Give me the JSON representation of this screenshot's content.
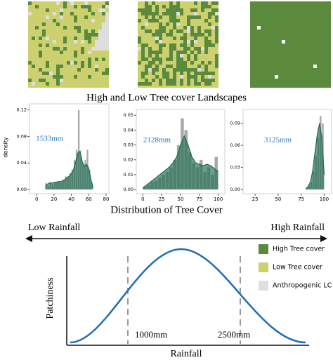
{
  "maps_title": "High and Low Tree cover Landscapes",
  "hist_title": "Distribution of Tree Cover",
  "arrow": {
    "left": "Low Rainfall",
    "right": "High Rainfall"
  },
  "chart_data": [
    {
      "type": "histogram",
      "annotation": "1533mm",
      "y_label": "density",
      "color": "#a9a9a9",
      "kde_color": "#1d6b4e",
      "bins": [
        10,
        12.5,
        15,
        17.5,
        20,
        22.5,
        25,
        27.5,
        30,
        32.5,
        35,
        37.5,
        40,
        42.5,
        45,
        47.5,
        50,
        52.5,
        55,
        57.5,
        60,
        62.5,
        65
      ],
      "values": [
        0.01,
        0.005,
        0.01,
        0.008,
        0.012,
        0.01,
        0.012,
        0.01,
        0.015,
        0.02,
        0.018,
        0.025,
        0.03,
        0.045,
        0.06,
        0.12,
        0.05,
        0.04,
        0.045,
        0.06,
        0.03,
        0.01
      ],
      "kde": [
        0.005,
        0.008,
        0.01,
        0.01,
        0.01,
        0.011,
        0.012,
        0.012,
        0.013,
        0.015,
        0.018,
        0.02,
        0.024,
        0.03,
        0.042,
        0.055,
        0.058,
        0.042,
        0.035,
        0.038,
        0.032,
        0.015,
        0.003
      ],
      "xlim": [
        -5,
        80
      ],
      "xticks": [
        0,
        20,
        40,
        60,
        80
      ],
      "ylim": [
        0,
        0.125
      ],
      "yticks": [
        {
          "value": 0,
          "label": "0.00"
        },
        0.04,
        0.08,
        0.12
      ]
    },
    {
      "type": "histogram",
      "annotation": "2128mm",
      "color": "#a9a9a9",
      "kde_color": "#1d6b4e",
      "bins": [
        0,
        5,
        10,
        15,
        20,
        25,
        30,
        35,
        40,
        45,
        50,
        55,
        60,
        65,
        70,
        75,
        80,
        85,
        90,
        95,
        100
      ],
      "values": [
        0.002,
        0.003,
        0.005,
        0.006,
        0.008,
        0.01,
        0.012,
        0.015,
        0.02,
        0.03,
        0.048,
        0.04,
        0.025,
        0.018,
        0.015,
        0.02,
        0.012,
        0.015,
        0.01,
        0.022
      ],
      "kde": [
        0.001,
        0.003,
        0.005,
        0.007,
        0.009,
        0.011,
        0.013,
        0.015,
        0.018,
        0.022,
        0.03,
        0.036,
        0.03,
        0.022,
        0.018,
        0.017,
        0.016,
        0.017,
        0.016,
        0.014,
        0.012
      ],
      "xlim": [
        -5,
        105
      ],
      "xticks": [
        0,
        25,
        50,
        75,
        100
      ],
      "ylim": [
        0,
        0.052
      ],
      "yticks": [
        {
          "value": 0,
          "label": "0.00"
        },
        0.01,
        0.02,
        0.03,
        0.04,
        0.05
      ]
    },
    {
      "type": "histogram",
      "annotation": "3125mm",
      "color": "#a9a9a9",
      "kde_color": "#1d6b4e",
      "bins": [
        80,
        82.5,
        85,
        87.5,
        90,
        92.5,
        95,
        97.5,
        100
      ],
      "values": [
        0.002,
        0.005,
        0.01,
        0.025,
        0.045,
        0.07,
        0.1,
        0.09
      ],
      "kde": [
        0.001,
        0.004,
        0.01,
        0.025,
        0.05,
        0.075,
        0.09,
        0.07,
        0.02
      ],
      "xlim": [
        15,
        105
      ],
      "xticks": [
        25,
        50,
        75,
        100
      ],
      "ylim": [
        0,
        0.105
      ],
      "yticks": [
        {
          "value": 0,
          "label": "0.00"
        },
        0.03,
        0.06,
        0.09
      ]
    }
  ],
  "concept": {
    "y_label": "Patchiness",
    "x_label": "Rainfall",
    "markers": [
      "1000mm",
      "2500mm"
    ],
    "legend": [
      {
        "name": "High Tree cover",
        "color": "#5b8a3c"
      },
      {
        "name": "Low Tree cover",
        "color": "#cdd06e"
      },
      {
        "name": "Anthropogenic LC",
        "color": "#dedede"
      }
    ]
  }
}
